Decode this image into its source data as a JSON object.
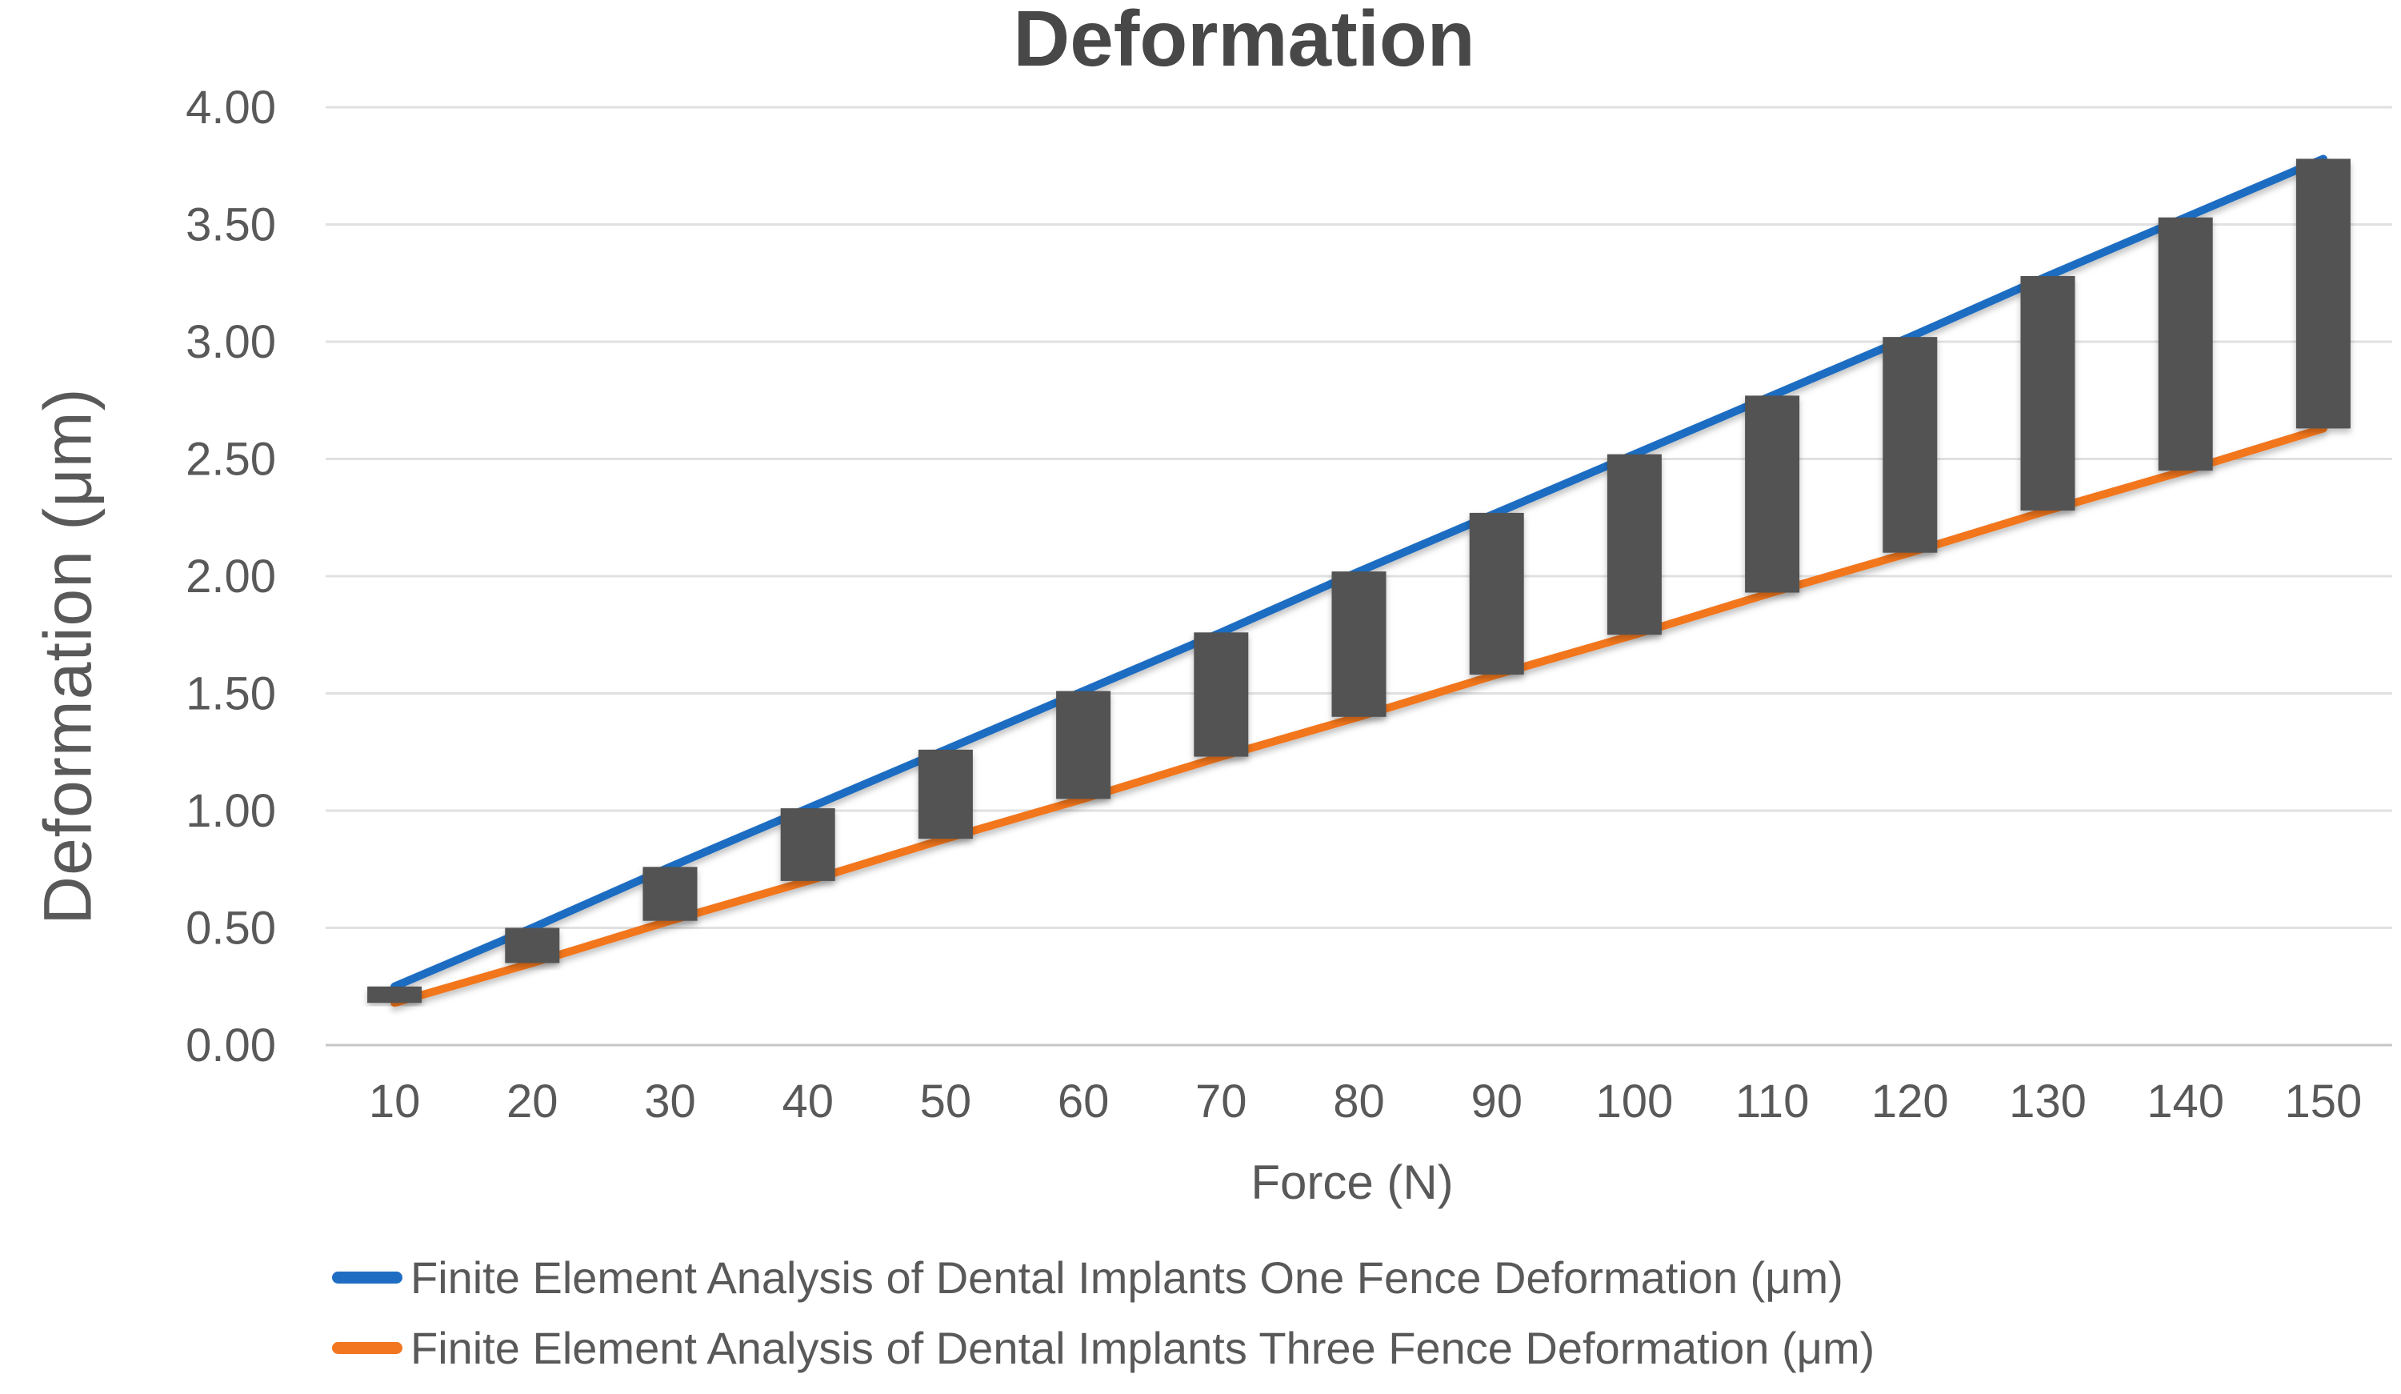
{
  "chart_data": {
    "type": "line",
    "title": "Deformation",
    "xlabel": "Force (N)",
    "ylabel": "Deformation (μm)",
    "x": [
      10,
      20,
      30,
      40,
      50,
      60,
      70,
      80,
      90,
      100,
      110,
      120,
      130,
      140,
      150
    ],
    "x_tick_labels": [
      "10",
      "20",
      "30",
      "40",
      "50",
      "60",
      "70",
      "80",
      "90",
      "100",
      "110",
      "120",
      "130",
      "140",
      "150"
    ],
    "ylim": [
      0,
      4
    ],
    "ytick_step": 0.5,
    "y_tick_labels": [
      "0.00",
      "0.50",
      "1.00",
      "1.50",
      "2.00",
      "2.50",
      "3.00",
      "3.50",
      "4.00"
    ],
    "grid": true,
    "legend_position": "bottom-left",
    "series": [
      {
        "name": "Finite Element Analysis of Dental Implants One Fence Deformation (μm)",
        "color": "#1F6DC2",
        "values": [
          0.25,
          0.5,
          0.76,
          1.01,
          1.26,
          1.51,
          1.76,
          2.02,
          2.27,
          2.52,
          2.77,
          3.02,
          3.28,
          3.53,
          3.78
        ]
      },
      {
        "name": "Finite Element Analysis of Dental Implants Three Fence Deformation (μm)",
        "color": "#F2761F",
        "values": [
          0.18,
          0.35,
          0.53,
          0.7,
          0.88,
          1.05,
          1.23,
          1.4,
          1.58,
          1.75,
          1.93,
          2.1,
          2.28,
          2.45,
          2.63
        ]
      }
    ],
    "up_down_bars": {
      "enabled": true,
      "color": "#525252"
    },
    "colors": {
      "background": "#FFFFFF",
      "gridline": "#E1E1E1",
      "axis_line": "#C6C6C6",
      "tick_label": "#595959",
      "title": "#484848",
      "axis_title": "#595959",
      "legend_text": "#595959"
    }
  }
}
